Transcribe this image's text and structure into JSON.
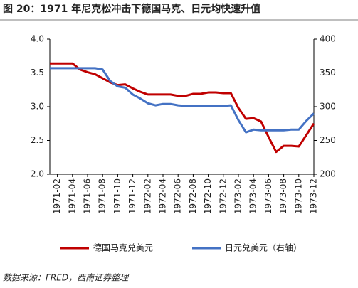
{
  "chart_data": {
    "type": "line",
    "title": "图 20：1971 年尼克松冲击下德国马克、日元均快速升值",
    "source": "数据来源：FRED，西南证券整理",
    "categories": [
      null,
      "1971-02",
      null,
      "1971-04",
      null,
      "1971-06",
      null,
      "1971-08",
      null,
      "1971-10",
      null,
      "1971-12",
      null,
      "1972-02",
      null,
      "1972-04",
      null,
      "1972-06",
      null,
      "1972-08",
      null,
      "1972-10",
      null,
      "1972-12",
      null,
      "1973-02",
      null,
      "1973-04",
      null,
      "1973-06",
      null,
      "1973-08",
      null,
      "1973-10",
      null,
      "1973-12"
    ],
    "series": [
      {
        "name": "德国马克兑美元",
        "color": "#c00000",
        "values": [
          3.64,
          3.64,
          3.64,
          3.64,
          3.55,
          3.51,
          3.48,
          3.42,
          3.36,
          3.32,
          3.33,
          3.27,
          3.22,
          3.18,
          3.18,
          3.18,
          3.18,
          3.16,
          3.16,
          3.19,
          3.19,
          3.21,
          3.21,
          3.2,
          3.2,
          2.98,
          2.82,
          2.83,
          2.78,
          2.55,
          2.33,
          2.42,
          2.42,
          2.41,
          2.58,
          2.75
        ]
      },
      {
        "name": "日元兑美元（右轴）",
        "color": "#4472c4",
        "axis": "y2",
        "values": [
          357,
          357,
          357,
          357,
          357,
          357,
          357,
          355,
          338,
          330,
          328,
          318,
          312,
          305,
          302,
          304,
          304,
          302,
          301,
          301,
          301,
          301,
          301,
          301,
          302,
          280,
          262,
          266,
          265,
          265,
          265,
          265,
          266,
          266,
          279,
          290
        ]
      }
    ],
    "ylim": [
      2.0,
      4.0
    ],
    "yticks": [
      {
        "value": 2.0,
        "label": "2.0"
      },
      2.5,
      {
        "value": 3.0,
        "label": "3.0"
      },
      3.5,
      {
        "value": 4.0,
        "label": "4.0"
      }
    ],
    "y2lim": [
      200,
      400
    ],
    "y2ticks": [
      200,
      250,
      300,
      350,
      400
    ]
  }
}
